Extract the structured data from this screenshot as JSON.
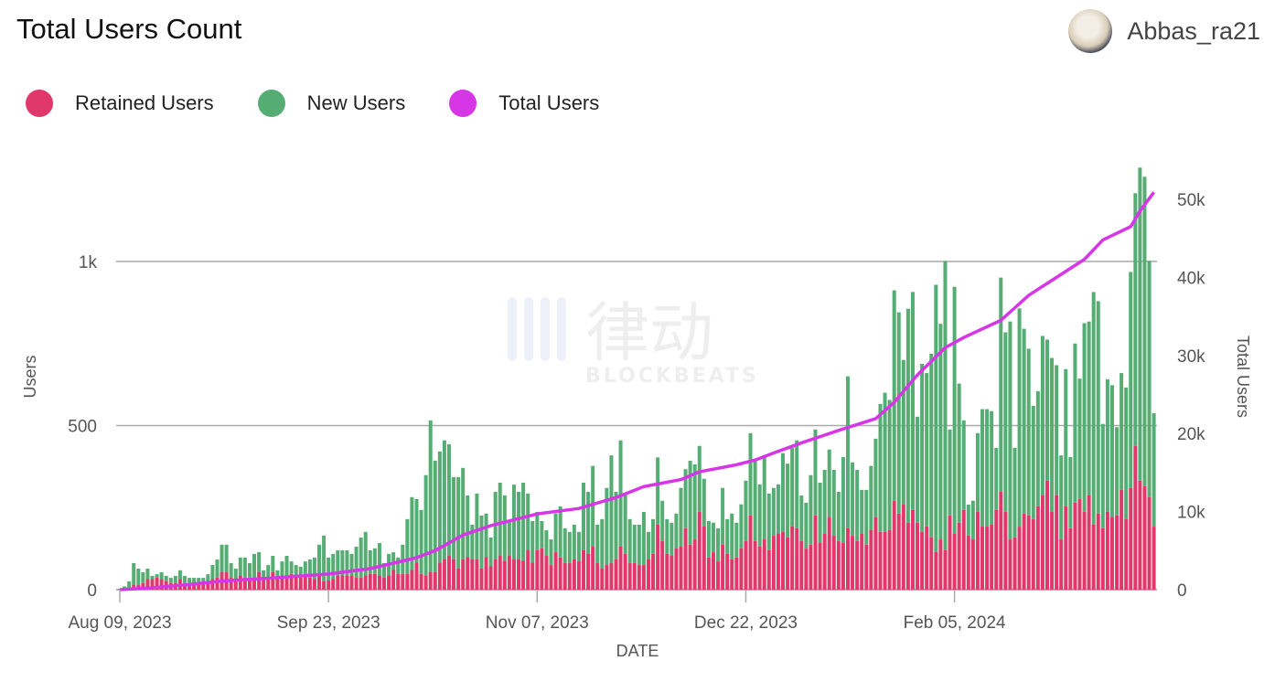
{
  "header": {
    "title": "Total Users Count",
    "username": "Abbas_ra21"
  },
  "watermark": {
    "logo_text": "律动",
    "logo_subtext": "BLOCKBEATS"
  },
  "chart_data": {
    "type": "bar",
    "stacked": true,
    "title": "Total Users Count",
    "xlabel": "DATE",
    "ylabel": "Users",
    "y2label": "Total Users",
    "x_start": "2023-08-09",
    "x_interval": "day",
    "x_tick_labels": [
      "Aug 09, 2023",
      "Sep 23, 2023",
      "Nov 07, 2023",
      "Dec 22, 2023",
      "Feb 05, 2024"
    ],
    "y_tick_labels": [
      "0",
      "500",
      "1k"
    ],
    "y2_tick_labels": [
      "0",
      "10k",
      "20k",
      "30k",
      "40k",
      "50k"
    ],
    "ylim": [
      0,
      1290
    ],
    "y2lim": [
      0,
      50000
    ],
    "grid": true,
    "legend_position": "top-left",
    "colors": {
      "retained": "#e0386a",
      "new": "#55ad73",
      "total": "#d636e6"
    },
    "legend": [
      "Retained Users",
      "New Users",
      "Total Users"
    ],
    "series": [
      {
        "name": "Retained Users",
        "kind": "bar",
        "values": [
          1,
          3,
          5,
          14,
          14,
          20,
          32,
          32,
          37,
          32,
          26,
          20,
          20,
          32,
          20,
          20,
          20,
          15,
          20,
          20,
          32,
          37,
          54,
          54,
          37,
          32,
          43,
          37,
          37,
          37,
          54,
          37,
          37,
          54,
          37,
          43,
          37,
          48,
          43,
          37,
          43,
          37,
          32,
          48,
          26,
          28,
          32,
          43,
          43,
          43,
          43,
          37,
          37,
          43,
          48,
          48,
          43,
          37,
          43,
          60,
          48,
          48,
          48,
          60,
          82,
          48,
          43,
          54,
          54,
          82,
          93,
          104,
          93,
          65,
          93,
          99,
          93,
          93,
          65,
          99,
          71,
          93,
          104,
          88,
          104,
          93,
          93,
          88,
          121,
          82,
          120,
          126,
          103,
          75,
          114,
          98,
          81,
          81,
          92,
          86,
          120,
          109,
          131,
          81,
          64,
          75,
          81,
          92,
          131,
          109,
          81,
          81,
          75,
          75,
          92,
          109,
          198,
          148,
          109,
          103,
          126,
          131,
          187,
          137,
          153,
          237,
          193,
          98,
          114,
          86,
          137,
          109,
          92,
          98,
          126,
          148,
          226,
          148,
          131,
          153,
          120,
          164,
          170,
          176,
          159,
          193,
          187,
          148,
          125,
          137,
          226,
          142,
          170,
          220,
          164,
          148,
          142,
          187,
          164,
          148,
          170,
          137,
          181,
          220,
          176,
          176,
          181,
          271,
          232,
          260,
          204,
          243,
          204,
          176,
          193,
          159,
          115,
          153,
          120,
          226,
          170,
          204,
          243,
          165,
          153,
          237,
          192,
          192,
          198,
          243,
          298,
          237,
          153,
          159,
          192,
          232,
          226,
          215,
          254,
          287,
          332,
          237,
          287,
          153,
          254,
          187,
          265,
          276,
          237,
          287,
          198,
          232,
          187,
          237,
          220,
          226,
          304,
          215,
          310,
          438,
          332,
          315,
          282,
          192
        ]
      },
      {
        "name": "New Users",
        "kind": "bar",
        "stack_total_values": [
          2,
          10,
          25,
          81,
          64,
          53,
          64,
          42,
          47,
          53,
          42,
          36,
          42,
          59,
          42,
          36,
          36,
          36,
          36,
          47,
          75,
          92,
          137,
          137,
          81,
          64,
          98,
          98,
          81,
          109,
          114,
          59,
          75,
          103,
          59,
          86,
          103,
          86,
          75,
          70,
          86,
          92,
          98,
          137,
          165,
          98,
          109,
          120,
          120,
          120,
          109,
          131,
          159,
          176,
          120,
          126,
          142,
          81,
          109,
          114,
          98,
          137,
          215,
          282,
          276,
          243,
          349,
          516,
          393,
          421,
          455,
          443,
          343,
          343,
          371,
          287,
          198,
          293,
          226,
          232,
          159,
          298,
          326,
          287,
          209,
          320,
          298,
          326,
          293,
          209,
          237,
          209,
          181,
          153,
          232,
          254,
          187,
          176,
          198,
          176,
          326,
          298,
          377,
          198,
          215,
          310,
          409,
          298,
          455,
          293,
          215,
          198,
          198,
          237,
          176,
          215,
          403,
          271,
          215,
          204,
          232,
          310,
          367,
          393,
          382,
          438,
          338,
          209,
          204,
          187,
          310,
          215,
          232,
          204,
          260,
          332,
          477,
          393,
          321,
          410,
          293,
          310,
          321,
          416,
          384,
          432,
          455,
          287,
          265,
          349,
          488,
          326,
          365,
          427,
          365,
          298,
          404,
          650,
          388,
          365,
          304,
          304,
          377,
          460,
          566,
          600,
          578,
          912,
          845,
          700,
          856,
          907,
          527,
          688,
          660,
          719,
          929,
          810,
          1001,
          488,
          923,
          628,
          516,
          259,
          271,
          477,
          550,
          550,
          544,
          432,
          951,
          784,
          817,
          432,
          857,
          795,
          734,
          560,
          605,
          773,
          762,
          706,
          684,
          409,
          672,
          404,
          750,
          643,
          812,
          817,
          907,
          879,
          505,
          641,
          623,
          495,
          660,
          616,
          968,
          1208,
          1286,
          1258,
          1002,
          538
        ]
      },
      {
        "name": "Total Users",
        "kind": "line",
        "axis": "right",
        "points": [
          [
            "2023-08-09",
            0
          ],
          [
            "2023-08-15",
            200
          ],
          [
            "2023-08-23",
            600
          ],
          [
            "2023-08-31",
            1100
          ],
          [
            "2023-09-11",
            1500
          ],
          [
            "2023-09-23",
            2000
          ],
          [
            "2023-10-02",
            2700
          ],
          [
            "2023-10-12",
            4100
          ],
          [
            "2023-10-16",
            5000
          ],
          [
            "2023-10-22",
            7000
          ],
          [
            "2023-10-28",
            8200
          ],
          [
            "2023-11-05",
            9400
          ],
          [
            "2023-11-07",
            9700
          ],
          [
            "2023-11-16",
            10400
          ],
          [
            "2023-11-24",
            11800
          ],
          [
            "2023-11-30",
            13200
          ],
          [
            "2023-12-08",
            14100
          ],
          [
            "2023-12-12",
            15100
          ],
          [
            "2023-12-20",
            16000
          ],
          [
            "2023-12-24",
            16600
          ],
          [
            "2023-12-28",
            17500
          ],
          [
            "2024-01-03",
            18800
          ],
          [
            "2024-01-11",
            20400
          ],
          [
            "2024-01-19",
            21900
          ],
          [
            "2024-01-23",
            24000
          ],
          [
            "2024-01-28",
            27500
          ],
          [
            "2024-02-03",
            31000
          ],
          [
            "2024-02-07",
            32300
          ],
          [
            "2024-02-15",
            34500
          ],
          [
            "2024-02-21",
            37700
          ],
          [
            "2024-02-27",
            40000
          ],
          [
            "2024-03-04",
            42300
          ],
          [
            "2024-03-08",
            44800
          ],
          [
            "2024-03-14",
            46500
          ],
          [
            "2024-03-16",
            48500
          ],
          [
            "2024-03-19",
            50900
          ]
        ]
      }
    ]
  }
}
